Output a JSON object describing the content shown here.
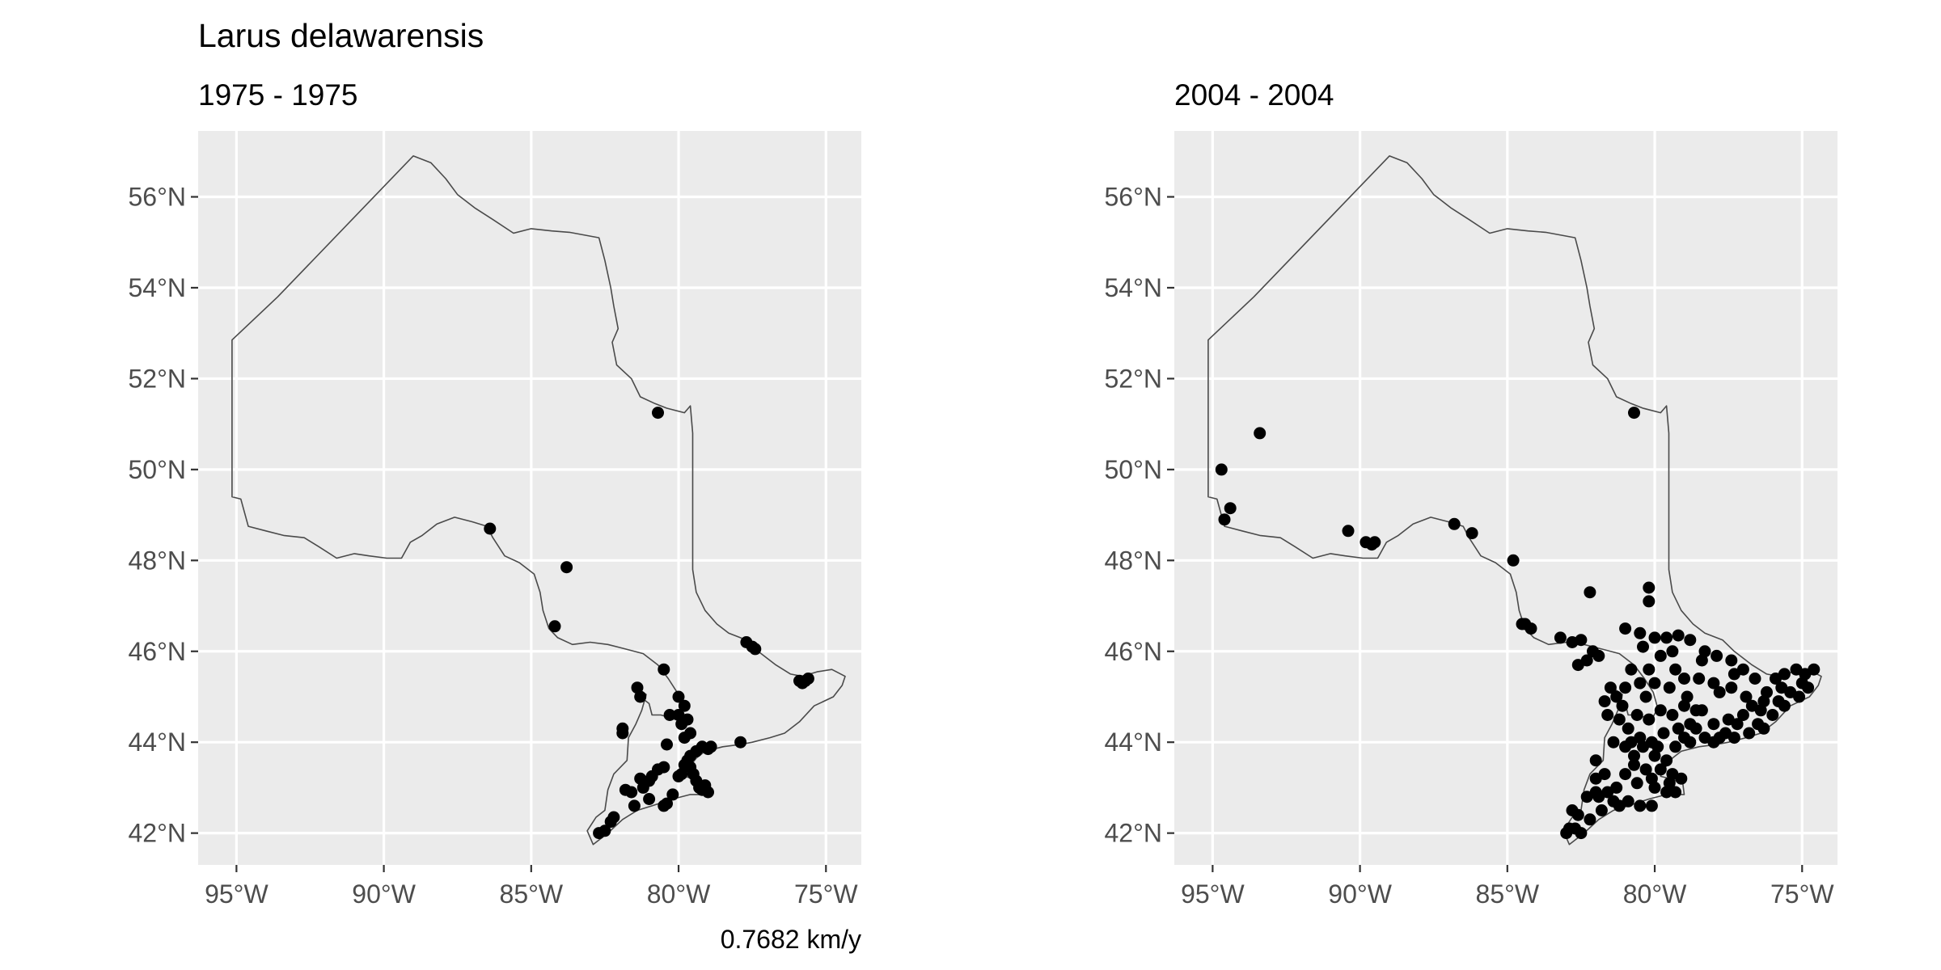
{
  "title": "Larus delawarensis",
  "caption": "0.7682 km/y",
  "colors": {
    "panel": "#ebebeb",
    "grid": "#ffffff",
    "outline": "#4a4a4a",
    "point": "#000000",
    "tick_text": "#4d4d4d"
  },
  "chart_data": [
    {
      "type": "scatter",
      "subtitle": "1975 - 1975",
      "xlim": [
        -96.3,
        -73.8
      ],
      "ylim": [
        41.3,
        57.45
      ],
      "x_ticks": [
        -95,
        -90,
        -85,
        -80,
        -75
      ],
      "x_tick_labels": [
        "95°W",
        "90°W",
        "85°W",
        "80°W",
        "75°W"
      ],
      "y_ticks": [
        42,
        44,
        46,
        48,
        50,
        52,
        54,
        56
      ],
      "y_tick_labels": [
        "42°N",
        "44°N",
        "46°N",
        "48°N",
        "50°N",
        "52°N",
        "54°N",
        "56°N"
      ],
      "grid": true,
      "points": [
        [
          -80.7,
          51.25
        ],
        [
          -86.4,
          48.7
        ],
        [
          -83.8,
          47.85
        ],
        [
          -84.2,
          46.55
        ],
        [
          -77.7,
          46.2
        ],
        [
          -77.5,
          46.1
        ],
        [
          -77.4,
          46.05
        ],
        [
          -75.9,
          45.35
        ],
        [
          -75.7,
          45.35
        ],
        [
          -75.6,
          45.4
        ],
        [
          -75.8,
          45.3
        ],
        [
          -80.5,
          45.6
        ],
        [
          -81.4,
          45.2
        ],
        [
          -81.3,
          45.0
        ],
        [
          -80.0,
          45.0
        ],
        [
          -79.8,
          44.8
        ],
        [
          -80.0,
          44.6
        ],
        [
          -79.7,
          44.5
        ],
        [
          -79.9,
          44.4
        ],
        [
          -79.6,
          44.2
        ],
        [
          -79.8,
          44.1
        ],
        [
          -80.4,
          43.95
        ],
        [
          -79.2,
          43.9
        ],
        [
          -79.0,
          43.85
        ],
        [
          -78.9,
          43.9
        ],
        [
          -79.4,
          43.8
        ],
        [
          -77.9,
          44.0
        ],
        [
          -79.6,
          43.7
        ],
        [
          -79.7,
          43.6
        ],
        [
          -79.8,
          43.5
        ],
        [
          -79.6,
          43.45
        ],
        [
          -79.9,
          43.3
        ],
        [
          -80.0,
          43.25
        ],
        [
          -79.5,
          43.3
        ],
        [
          -80.5,
          43.45
        ],
        [
          -80.7,
          43.4
        ],
        [
          -81.3,
          43.2
        ],
        [
          -81.0,
          43.15
        ],
        [
          -81.2,
          43.0
        ],
        [
          -81.8,
          42.95
        ],
        [
          -81.6,
          42.9
        ],
        [
          -81.0,
          42.75
        ],
        [
          -80.2,
          42.85
        ],
        [
          -80.4,
          42.65
        ],
        [
          -80.5,
          42.6
        ],
        [
          -79.4,
          43.15
        ],
        [
          -79.3,
          43.0
        ],
        [
          -79.1,
          43.05
        ],
        [
          -79.0,
          42.9
        ],
        [
          -79.2,
          42.95
        ],
        [
          -81.5,
          42.6
        ],
        [
          -82.2,
          42.35
        ],
        [
          -82.3,
          42.25
        ],
        [
          -82.5,
          42.05
        ],
        [
          -82.7,
          42.0
        ],
        [
          -81.9,
          44.3
        ],
        [
          -81.9,
          44.2
        ],
        [
          -80.9,
          43.25
        ],
        [
          -80.3,
          44.6
        ]
      ]
    },
    {
      "type": "scatter",
      "subtitle": "2004 - 2004",
      "xlim": [
        -96.3,
        -73.8
      ],
      "ylim": [
        41.3,
        57.45
      ],
      "x_ticks": [
        -95,
        -90,
        -85,
        -80,
        -75
      ],
      "x_tick_labels": [
        "95°W",
        "90°W",
        "85°W",
        "80°W",
        "75°W"
      ],
      "y_ticks": [
        42,
        44,
        46,
        48,
        50,
        52,
        54,
        56
      ],
      "y_tick_labels": [
        "42°N",
        "44°N",
        "46°N",
        "48°N",
        "50°N",
        "52°N",
        "54°N",
        "56°N"
      ],
      "grid": true,
      "points": [
        [
          -80.7,
          51.25
        ],
        [
          -93.4,
          50.8
        ],
        [
          -94.7,
          50.0
        ],
        [
          -94.4,
          49.15
        ],
        [
          -94.6,
          48.9
        ],
        [
          -90.4,
          48.65
        ],
        [
          -89.8,
          48.4
        ],
        [
          -89.5,
          48.4
        ],
        [
          -89.6,
          48.35
        ],
        [
          -86.8,
          48.8
        ],
        [
          -86.2,
          48.6
        ],
        [
          -84.8,
          48.0
        ],
        [
          -82.2,
          47.3
        ],
        [
          -80.2,
          47.4
        ],
        [
          -80.2,
          47.1
        ],
        [
          -84.4,
          46.6
        ],
        [
          -84.2,
          46.5
        ],
        [
          -84.5,
          46.6
        ],
        [
          -83.2,
          46.3
        ],
        [
          -82.8,
          46.2
        ],
        [
          -82.5,
          46.25
        ],
        [
          -81.0,
          46.5
        ],
        [
          -80.5,
          46.4
        ],
        [
          -80.0,
          46.3
        ],
        [
          -79.6,
          46.3
        ],
        [
          -79.2,
          46.35
        ],
        [
          -78.8,
          46.25
        ],
        [
          -80.4,
          46.1
        ],
        [
          -79.4,
          46.0
        ],
        [
          -78.3,
          46.0
        ],
        [
          -77.9,
          45.9
        ],
        [
          -77.4,
          45.8
        ],
        [
          -77.0,
          45.6
        ],
        [
          -76.6,
          45.4
        ],
        [
          -75.9,
          45.4
        ],
        [
          -75.6,
          45.5
        ],
        [
          -75.2,
          45.6
        ],
        [
          -74.9,
          45.5
        ],
        [
          -74.6,
          45.6
        ],
        [
          -75.7,
          45.2
        ],
        [
          -75.4,
          45.1
        ],
        [
          -75.0,
          45.3
        ],
        [
          -74.8,
          45.2
        ],
        [
          -75.1,
          45.0
        ],
        [
          -75.6,
          44.8
        ],
        [
          -76.0,
          44.6
        ],
        [
          -76.5,
          44.4
        ],
        [
          -76.8,
          44.2
        ],
        [
          -77.3,
          44.1
        ],
        [
          -77.8,
          44.1
        ],
        [
          -78.3,
          44.1
        ],
        [
          -78.8,
          44.0
        ],
        [
          -79.3,
          43.9
        ],
        [
          -78.6,
          44.3
        ],
        [
          -78.0,
          44.4
        ],
        [
          -77.5,
          44.5
        ],
        [
          -77.0,
          44.6
        ],
        [
          -76.3,
          44.9
        ],
        [
          -76.9,
          45.0
        ],
        [
          -77.4,
          45.2
        ],
        [
          -78.0,
          45.3
        ],
        [
          -78.5,
          45.4
        ],
        [
          -79.0,
          45.4
        ],
        [
          -79.5,
          45.2
        ],
        [
          -80.0,
          45.3
        ],
        [
          -80.5,
          45.3
        ],
        [
          -81.0,
          45.2
        ],
        [
          -81.3,
          45.0
        ],
        [
          -81.5,
          45.2
        ],
        [
          -81.1,
          44.8
        ],
        [
          -80.6,
          44.6
        ],
        [
          -80.2,
          44.5
        ],
        [
          -79.8,
          44.7
        ],
        [
          -79.4,
          44.6
        ],
        [
          -79.0,
          44.8
        ],
        [
          -78.6,
          44.7
        ],
        [
          -81.2,
          44.5
        ],
        [
          -81.6,
          44.6
        ],
        [
          -80.9,
          44.3
        ],
        [
          -80.5,
          44.1
        ],
        [
          -80.1,
          44.0
        ],
        [
          -79.7,
          44.2
        ],
        [
          -79.2,
          44.3
        ],
        [
          -78.8,
          44.4
        ],
        [
          -80.4,
          43.9
        ],
        [
          -80.0,
          43.7
        ],
        [
          -79.6,
          43.6
        ],
        [
          -79.8,
          43.4
        ],
        [
          -79.4,
          43.3
        ],
        [
          -79.1,
          43.2
        ],
        [
          -80.3,
          43.4
        ],
        [
          -80.7,
          43.5
        ],
        [
          -81.0,
          43.3
        ],
        [
          -81.3,
          43.0
        ],
        [
          -81.6,
          42.9
        ],
        [
          -81.9,
          42.8
        ],
        [
          -81.4,
          42.7
        ],
        [
          -80.9,
          42.7
        ],
        [
          -80.5,
          42.6
        ],
        [
          -80.1,
          42.6
        ],
        [
          -79.3,
          42.9
        ],
        [
          -79.5,
          43.1
        ],
        [
          -80.1,
          43.2
        ],
        [
          -80.6,
          43.1
        ],
        [
          -81.0,
          43.9
        ],
        [
          -80.8,
          44.0
        ],
        [
          -81.7,
          43.3
        ],
        [
          -82.0,
          43.2
        ],
        [
          -82.3,
          42.8
        ],
        [
          -82.6,
          42.4
        ],
        [
          -82.7,
          42.1
        ],
        [
          -82.9,
          42.1
        ],
        [
          -82.5,
          42.0
        ],
        [
          -82.2,
          42.3
        ],
        [
          -81.8,
          42.5
        ],
        [
          -82.8,
          42.5
        ],
        [
          -82.0,
          42.9
        ],
        [
          -83.0,
          42.0
        ],
        [
          -78.0,
          44.0
        ],
        [
          -77.6,
          44.2
        ],
        [
          -77.2,
          44.4
        ],
        [
          -76.7,
          44.8
        ],
        [
          -76.2,
          45.1
        ],
        [
          -75.8,
          44.9
        ],
        [
          -76.4,
          44.7
        ],
        [
          -78.4,
          44.7
        ],
        [
          -78.9,
          45.0
        ],
        [
          -79.8,
          45.9
        ],
        [
          -80.2,
          45.6
        ],
        [
          -81.9,
          45.9
        ],
        [
          -82.1,
          46.0
        ],
        [
          -82.6,
          45.7
        ],
        [
          -82.3,
          45.8
        ],
        [
          -81.7,
          44.9
        ],
        [
          -80.8,
          45.6
        ],
        [
          -79.3,
          45.6
        ],
        [
          -78.4,
          45.8
        ],
        [
          -77.8,
          45.1
        ],
        [
          -77.3,
          45.5
        ],
        [
          -76.3,
          44.3
        ],
        [
          -80.3,
          45.0
        ],
        [
          -79.9,
          43.9
        ],
        [
          -79.0,
          44.1
        ],
        [
          -80.7,
          43.7
        ],
        [
          -81.4,
          44.0
        ],
        [
          -82.0,
          43.6
        ],
        [
          -81.2,
          42.6
        ],
        [
          -80.0,
          43.0
        ],
        [
          -79.6,
          42.9
        ]
      ]
    }
  ]
}
